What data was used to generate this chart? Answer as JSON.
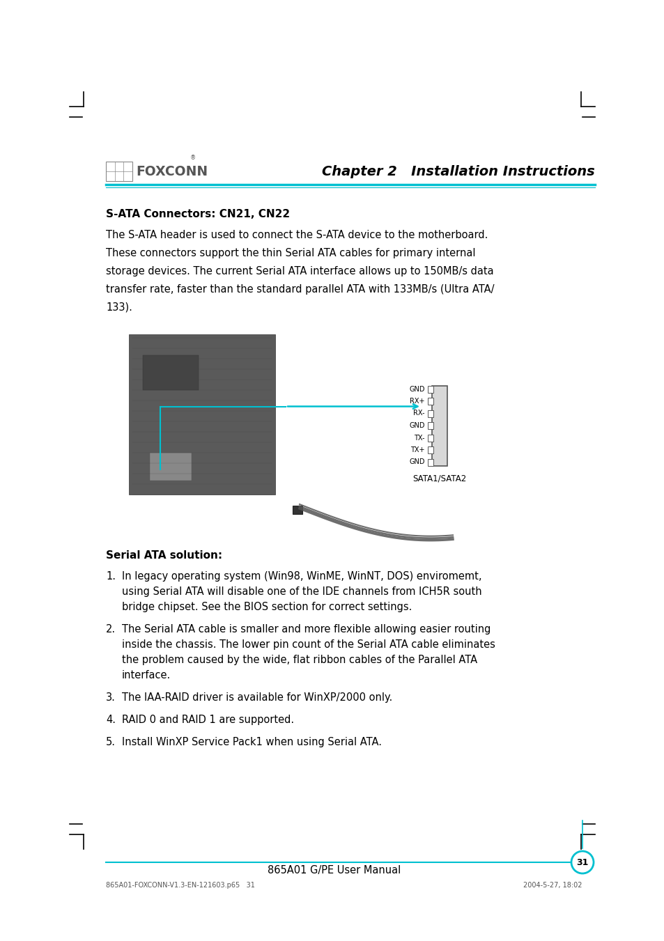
{
  "bg_color": "#ffffff",
  "title_chapter": "Chapter 2   Installation Instructions",
  "section1_title": "S-ATA Connectors: CN21, CN22",
  "section1_body_lines": [
    "The S-ATA header is used to connect the S-ATA device to the motherboard.",
    "These connectors support the thin Serial ATA cables for primary internal",
    "storage devices. The current Serial ATA interface allows up to 150MB/s data",
    "transfer rate, faster than the standard parallel ATA with 133MB/s (Ultra ATA/",
    "133)."
  ],
  "section2_title": "Serial ATA solution:",
  "section2_items": [
    [
      "In legacy operating system (Win98, WinME, WinNT, DOS) enviromemt,",
      "using Serial ATA will disable one of the IDE channels from ICH5R south",
      "bridge chipset. See the BIOS section for correct settings."
    ],
    [
      "The Serial ATA cable is smaller and more flexible allowing easier routing",
      "inside the chassis. The lower pin count of the Serial ATA cable eliminates",
      "the problem caused by the wide, flat ribbon cables of the Parallel ATA",
      "interface."
    ],
    [
      "The IAA-RAID driver is available for WinXP/2000 only."
    ],
    [
      "RAID 0 and RAID 1 are supported."
    ],
    [
      "Install WinXP Service Pack1 when using Serial ATA."
    ]
  ],
  "footer_text": "865A01 G/PE User Manual",
  "footer_page": "31",
  "bottom_left_text": "865A01-FOXCONN-V1.3-EN-121603.p65   31",
  "bottom_right_text": "2004-5-27, 18:02",
  "connector_labels": [
    "GND",
    "RX+",
    "RX-",
    "GND",
    "TX-",
    "TX+",
    "GND"
  ],
  "connector_label_x": "SATA1/SATA2",
  "header_line_color": "#00c0d0",
  "page_circle_color": "#00c0d0",
  "page_circle_line_color": "#00c0d0"
}
